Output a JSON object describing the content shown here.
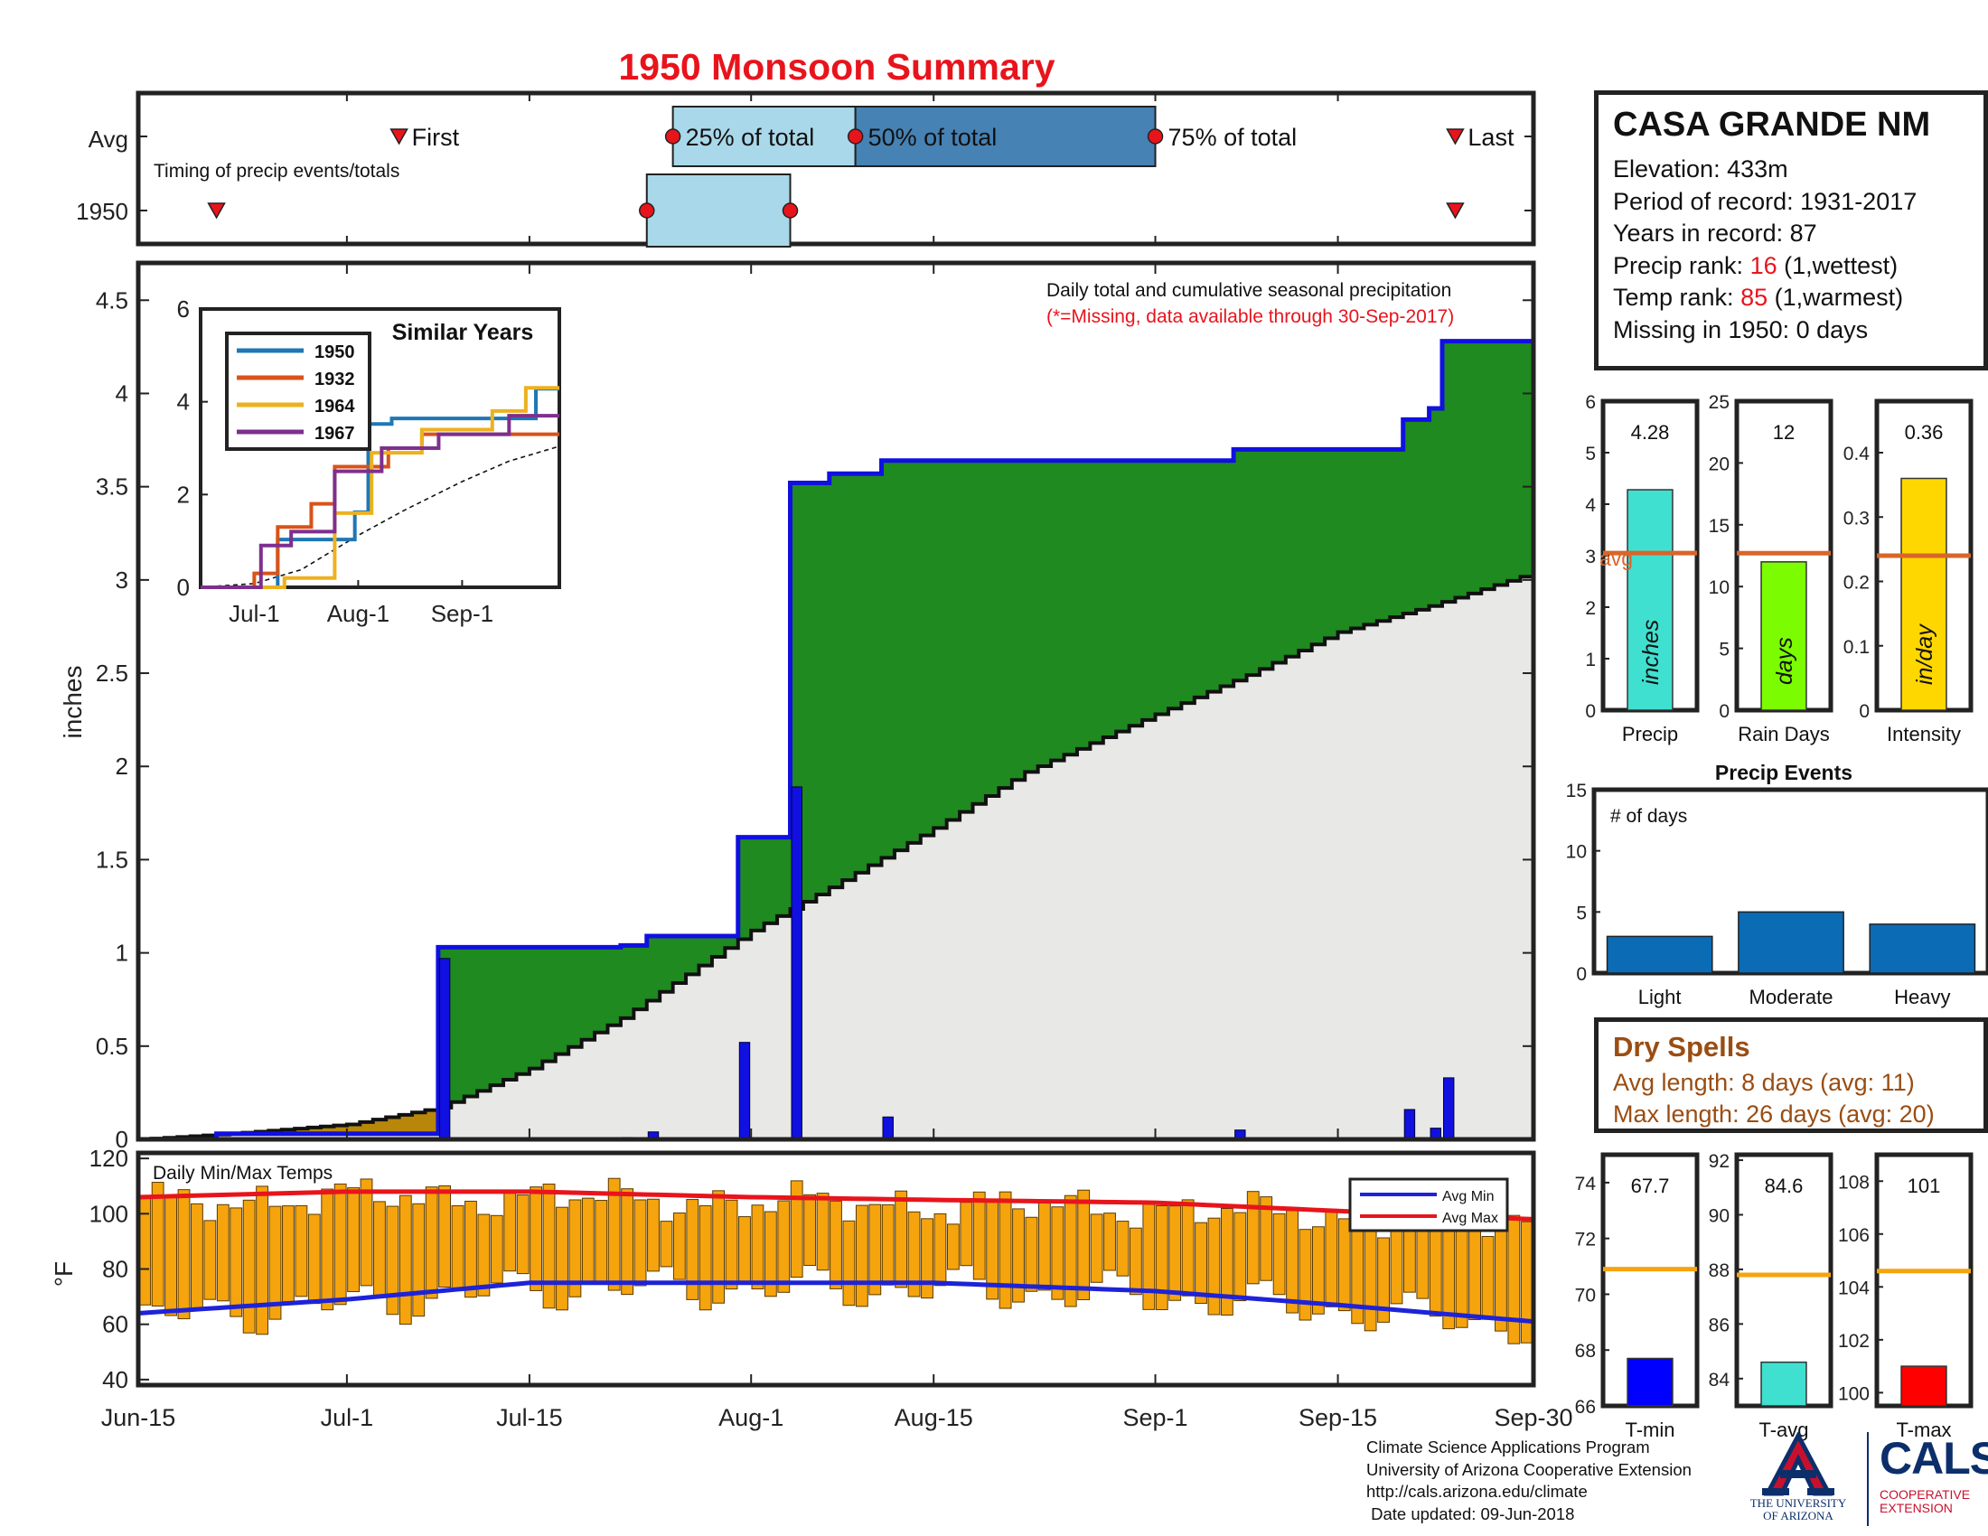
{
  "title": "1950 Monsoon Summary",
  "station": {
    "name": "CASA GRANDE NM",
    "elevation_label": "Elevation:",
    "elevation_value": "433m",
    "period_label": "Period of record:",
    "period_value": "1931-2017",
    "years_label": "Years in record:",
    "years_value": "87",
    "precip_rank_label": "Precip rank:",
    "precip_rank_value": "16",
    "precip_rank_note": "(1,wettest)",
    "temp_rank_label": "Temp rank:",
    "temp_rank_value": "85",
    "temp_rank_note": "(1,warmest)",
    "missing_label": "Missing in 1950:",
    "missing_value": "0 days"
  },
  "dry_spells": {
    "title": "Dry Spells",
    "avg_line": "Avg length: 8 days (avg: 11)",
    "max_line": "Max length: 26 days (avg: 20)"
  },
  "footer": {
    "line1": "Climate Science Applications Program",
    "line2": "University of Arizona Cooperative Extension",
    "line3": "http://cals.arizona.edu/climate",
    "line4": " Date updated: 09-Jun-2018"
  },
  "logos": {
    "ua_line1": "THE UNIVERSITY",
    "ua_line2": "OF ARIZONA",
    "cals": "CALS",
    "cals_sub1": "COOPERATIVE",
    "cals_sub2": "EXTENSION"
  },
  "colors": {
    "title_red": "#e8141c",
    "green": "#1f8a1f",
    "cum_blue": "#1010e0",
    "avg_fill": "#e8e8e6",
    "orange": "#f5a40e",
    "tmax_red": "#e8141c",
    "tmin_blue": "#1e22d8",
    "avgline_orange": "#d9652a",
    "event_blue": "#0b6bb5",
    "light_blue": "#a9d8ea",
    "mid_blue": "#4682b4",
    "marker_red": "#e8141c"
  },
  "chart_data": [
    {
      "id": "timing",
      "type": "timeline",
      "caption": "Timing of precip events/totals",
      "row_labels": [
        "Avg",
        "1950"
      ],
      "avg": {
        "first": "Jul-5",
        "p25": "Jul-26",
        "p50": "Aug-9",
        "p75": "Sep-1",
        "last": "Sep-24"
      },
      "year": {
        "first": "Jun-21",
        "p25": "Jul-24",
        "p50": "Aug-4",
        "last": "Sep-24"
      },
      "labels": {
        "first": "First",
        "p25": "25% of total",
        "p50": "50% of total",
        "p75": "75% of total",
        "last": "Last"
      }
    },
    {
      "id": "precip_main",
      "type": "area",
      "note1": "Daily total and cumulative seasonal precipitation",
      "note2": "(*=Missing, data available through 30-Sep-2017)",
      "ylabel": "inches",
      "ylim": [
        0,
        4.7
      ],
      "yticks": [
        0,
        0.5,
        1,
        1.5,
        2,
        2.5,
        3,
        3.5,
        4,
        4.5
      ],
      "xlim": [
        "Jun-15",
        "Sep-30"
      ],
      "xticks": [
        "Jun-15",
        "Jul-1",
        "Jul-15",
        "Aug-1",
        "Aug-15",
        "Sep-1",
        "Sep-15",
        "Sep-30"
      ],
      "daily_precip": [
        {
          "date": "Jun-21",
          "value": 0.01
        },
        {
          "date": "Jul-8",
          "value": 0.97
        },
        {
          "date": "Jul-22",
          "value": 0.01
        },
        {
          "date": "Jul-24",
          "value": 0.04
        },
        {
          "date": "Jul-31",
          "value": 0.52
        },
        {
          "date": "Aug-4",
          "value": 1.89
        },
        {
          "date": "Aug-11",
          "value": 0.12
        },
        {
          "date": "Sep-7",
          "value": 0.05
        },
        {
          "date": "Sep-20",
          "value": 0.16
        },
        {
          "date": "Sep-22",
          "value": 0.06
        },
        {
          "date": "Sep-23",
          "value": 0.33
        }
      ],
      "cumulative_1950": [
        [
          "Jun-15",
          0
        ],
        [
          "Jun-21",
          0.03
        ],
        [
          "Jul-8",
          1.03
        ],
        [
          "Jul-22",
          1.04
        ],
        [
          "Jul-24",
          1.09
        ],
        [
          "Jul-31",
          1.62
        ],
        [
          "Aug-4",
          3.52
        ],
        [
          "Aug-7",
          3.57
        ],
        [
          "Aug-11",
          3.64
        ],
        [
          "Sep-7",
          3.7
        ],
        [
          "Sep-20",
          3.86
        ],
        [
          "Sep-22",
          3.92
        ],
        [
          "Sep-23",
          4.28
        ],
        [
          "Sep-30",
          4.28
        ]
      ],
      "cumulative_avg": [
        [
          "Jun-15",
          0.0
        ],
        [
          "Jun-22",
          0.03
        ],
        [
          "Jul-1",
          0.08
        ],
        [
          "Jul-8",
          0.17
        ],
        [
          "Jul-15",
          0.38
        ],
        [
          "Jul-22",
          0.65
        ],
        [
          "Aug-1",
          1.12
        ],
        [
          "Aug-8",
          1.39
        ],
        [
          "Aug-15",
          1.67
        ],
        [
          "Aug-22",
          1.97
        ],
        [
          "Sep-1",
          2.28
        ],
        [
          "Sep-8",
          2.49
        ],
        [
          "Sep-15",
          2.72
        ],
        [
          "Sep-22",
          2.86
        ],
        [
          "Sep-30",
          3.04
        ]
      ]
    },
    {
      "id": "similar_years",
      "type": "line",
      "title": "Similar Years",
      "ylim": [
        0,
        6
      ],
      "yticks": [
        0,
        2,
        4,
        6
      ],
      "xticks": [
        "Jul-1",
        "Aug-1",
        "Sep-1"
      ],
      "series": [
        {
          "name": "1950",
          "color": "#1f77b4",
          "values": [
            [
              "Jun-15",
              0
            ],
            [
              "Jul-8",
              1.03
            ],
            [
              "Jul-31",
              1.62
            ],
            [
              "Aug-4",
              3.52
            ],
            [
              "Aug-11",
              3.64
            ],
            [
              "Sep-23",
              4.28
            ],
            [
              "Sep-30",
              4.28
            ]
          ]
        },
        {
          "name": "1932",
          "color": "#d95319",
          "values": [
            [
              "Jun-15",
              0
            ],
            [
              "Jul-1",
              0.3
            ],
            [
              "Jul-8",
              1.3
            ],
            [
              "Jul-18",
              1.8
            ],
            [
              "Jul-25",
              2.6
            ],
            [
              "Aug-10",
              3.0
            ],
            [
              "Aug-20",
              3.3
            ],
            [
              "Sep-28",
              3.3
            ],
            [
              "Sep-30",
              3.7
            ]
          ]
        },
        {
          "name": "1964",
          "color": "#edb120",
          "values": [
            [
              "Jun-15",
              0
            ],
            [
              "Jul-10",
              0.2
            ],
            [
              "Jul-25",
              1.6
            ],
            [
              "Aug-5",
              2.9
            ],
            [
              "Aug-20",
              3.4
            ],
            [
              "Sep-10",
              3.8
            ],
            [
              "Sep-20",
              4.3
            ],
            [
              "Sep-30",
              4.8
            ]
          ]
        },
        {
          "name": "1967",
          "color": "#7e2f8e",
          "values": [
            [
              "Jun-15",
              0
            ],
            [
              "Jul-3",
              0.9
            ],
            [
              "Jul-12",
              1.2
            ],
            [
              "Jul-25",
              2.5
            ],
            [
              "Aug-8",
              3.0
            ],
            [
              "Aug-25",
              3.3
            ],
            [
              "Sep-15",
              3.7
            ],
            [
              "Sep-30",
              3.7
            ]
          ]
        }
      ],
      "average_dashed": [
        [
          "Jun-15",
          0
        ],
        [
          "Jul-1",
          0.08
        ],
        [
          "Jul-15",
          0.38
        ],
        [
          "Aug-1",
          1.12
        ],
        [
          "Aug-15",
          1.67
        ],
        [
          "Sep-1",
          2.28
        ],
        [
          "Sep-15",
          2.72
        ],
        [
          "Sep-30",
          3.04
        ]
      ]
    },
    {
      "id": "temps",
      "type": "bar",
      "label": "Daily Min/Max Temps",
      "ylabel": "°F",
      "ylim": [
        38,
        122
      ],
      "yticks": [
        40,
        60,
        80,
        100,
        120
      ],
      "legend": [
        "Avg Min",
        "Avg Max"
      ],
      "legend_position": "top-right",
      "avg_min": [
        [
          "Jun-15",
          64
        ],
        [
          "Jul-1",
          69
        ],
        [
          "Jul-15",
          75
        ],
        [
          "Aug-1",
          75
        ],
        [
          "Aug-15",
          75
        ],
        [
          "Sep-1",
          72
        ],
        [
          "Sep-15",
          67
        ],
        [
          "Sep-30",
          61
        ]
      ],
      "avg_max": [
        [
          "Jun-15",
          106
        ],
        [
          "Jul-1",
          108
        ],
        [
          "Jul-15",
          108
        ],
        [
          "Aug-1",
          106
        ],
        [
          "Aug-15",
          105
        ],
        [
          "Sep-1",
          104
        ],
        [
          "Sep-15",
          101
        ],
        [
          "Sep-30",
          98
        ]
      ]
    },
    {
      "id": "totals",
      "type": "bar",
      "panels": [
        {
          "label": "Precip",
          "value": 4.28,
          "value_text": "4.28",
          "avg": 3.05,
          "ylim": [
            0,
            6
          ],
          "yticks": [
            0,
            1,
            2,
            3,
            4,
            5,
            6
          ],
          "inner_label": "inches",
          "color": "#40e0d0",
          "avg_text": "avg"
        },
        {
          "label": "Rain Days",
          "value": 12,
          "value_text": "12",
          "avg": 12.7,
          "ylim": [
            0,
            25
          ],
          "yticks": [
            0,
            5,
            10,
            15,
            20,
            25
          ],
          "inner_label": "days",
          "color": "#7cfc00"
        },
        {
          "label": "Intensity",
          "value": 0.36,
          "value_text": "0.36",
          "avg": 0.24,
          "ylim": [
            0,
            0.48
          ],
          "yticks": [
            0,
            0.1,
            0.2,
            0.3,
            0.4
          ],
          "inner_label": "in/day",
          "color": "#ffd700"
        }
      ]
    },
    {
      "id": "precip_events",
      "type": "bar",
      "title": "Precip Events",
      "ylabel_inside": "# of days",
      "categories": [
        "Light",
        "Moderate",
        "Heavy"
      ],
      "values": [
        3,
        5,
        4
      ],
      "ylim": [
        0,
        15
      ],
      "yticks": [
        0,
        5,
        10,
        15
      ]
    },
    {
      "id": "temp_means",
      "type": "bar",
      "panels": [
        {
          "label": "T-min",
          "value": 67.7,
          "value_text": "67.7",
          "avg": 70.9,
          "ylim": [
            66,
            75
          ],
          "yticks": [
            66,
            68,
            70,
            72,
            74
          ],
          "color": "#0000ff"
        },
        {
          "label": "T-avg",
          "value": 84.6,
          "value_text": "84.6",
          "avg": 87.8,
          "ylim": [
            83,
            92.2
          ],
          "yticks": [
            84,
            86,
            88,
            90,
            92
          ],
          "color": "#40e0d0"
        },
        {
          "label": "T-max",
          "value": 101,
          "value_text": "101",
          "avg": 104.6,
          "ylim": [
            99.5,
            109
          ],
          "yticks": [
            100,
            102,
            104,
            106,
            108
          ],
          "color": "#ff0000"
        }
      ]
    }
  ]
}
